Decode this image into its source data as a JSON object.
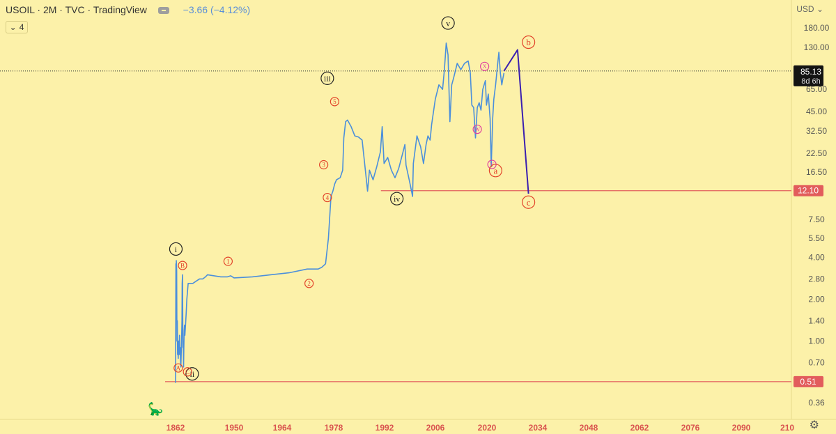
{
  "header": {
    "symbol": "USOIL",
    "interval": "2M",
    "source": "TVC",
    "provider": "TradingView",
    "change": "−3.66 (−4.12%)",
    "collapse_count": "4"
  },
  "currency": "USD",
  "chart_data": {
    "type": "line",
    "title": "USOIL · 2M · TVC · TradingView",
    "y_scale": "log",
    "ylim": [
      0.29,
      250
    ],
    "xlim": [
      1862,
      2104
    ],
    "y_ticks": [
      "180.00",
      "130.00",
      "65.00",
      "45.00",
      "32.50",
      "22.50",
      "16.50",
      "7.50",
      "5.50",
      "4.00",
      "2.80",
      "2.00",
      "1.40",
      "1.00",
      "0.70",
      "0.36"
    ],
    "x_ticks": [
      "1862",
      "1950",
      "1964",
      "1978",
      "1992",
      "2006",
      "2020",
      "2034",
      "2048",
      "2062",
      "2076",
      "2090",
      "210"
    ],
    "price_label": {
      "value": "85.13",
      "sub": "8d 6h"
    },
    "levels": [
      {
        "label": "12.10",
        "value": 12.1,
        "x_from": 1993,
        "color": "#e25c5c"
      },
      {
        "label": "0.51",
        "value": 0.51,
        "x_from": 1862,
        "color": "#e25c5c"
      }
    ],
    "series": [
      {
        "name": "USOIL",
        "color": "#4b8fdb",
        "points": [
          [
            1862,
            0.5
          ],
          [
            1862.5,
            3.6
          ],
          [
            1862.8,
            2.6
          ],
          [
            1863.2,
            3.8
          ],
          [
            1863.7,
            3.2
          ],
          [
            1864.1,
            1.0
          ],
          [
            1864.6,
            1.4
          ],
          [
            1865,
            0.8
          ],
          [
            1865.5,
            0.9
          ],
          [
            1866,
            0.75
          ],
          [
            1866.5,
            1.0
          ],
          [
            1867,
            0.8
          ],
          [
            1867.5,
            0.9
          ],
          [
            1868,
            1.1
          ],
          [
            1868.5,
            0.8
          ],
          [
            1869,
            0.9
          ],
          [
            1869.5,
            0.7
          ],
          [
            1870,
            0.65
          ],
          [
            1870.5,
            0.8
          ],
          [
            1871,
            1.0
          ],
          [
            1871.6,
            1.4
          ],
          [
            1872,
            2.6
          ],
          [
            1872.5,
            3.0
          ],
          [
            1873,
            0.9
          ],
          [
            1873.5,
            1.0
          ],
          [
            1874,
            0.65
          ],
          [
            1874.5,
            0.9
          ],
          [
            1875,
            1.2
          ],
          [
            1875.5,
            1.3
          ],
          [
            1876,
            1.1
          ],
          [
            1877,
            1.3
          ],
          [
            1878,
            1.6
          ],
          [
            1879,
            2.0
          ],
          [
            1880,
            2.3
          ],
          [
            1881,
            2.6
          ],
          [
            1883,
            2.6
          ],
          [
            1888,
            2.6
          ],
          [
            1893,
            2.7
          ],
          [
            1898,
            2.8
          ],
          [
            1903,
            2.8
          ],
          [
            1907,
            2.9
          ],
          [
            1910,
            3.0
          ],
          [
            1920,
            2.95
          ],
          [
            1930,
            2.9
          ],
          [
            1940,
            2.9
          ],
          [
            1945,
            2.95
          ],
          [
            1950,
            2.85
          ],
          [
            1955,
            2.9
          ],
          [
            1960,
            3.0
          ],
          [
            1965,
            3.1
          ],
          [
            1970,
            3.3
          ],
          [
            1973,
            3.3
          ],
          [
            1974,
            3.4
          ],
          [
            1975,
            3.6
          ],
          [
            1975.8,
            5.5
          ],
          [
            1976.5,
            11.0
          ],
          [
            1977,
            12.0
          ],
          [
            1977.5,
            13.5
          ],
          [
            1978,
            14.5
          ],
          [
            1979,
            15.0
          ],
          [
            1979.7,
            17.0
          ],
          [
            1980,
            29.0
          ],
          [
            1980.5,
            38.0
          ],
          [
            1981,
            39.0
          ],
          [
            1982,
            35.0
          ],
          [
            1983,
            30.0
          ],
          [
            1984,
            29.5
          ],
          [
            1985,
            28.0
          ],
          [
            1986,
            16.0
          ],
          [
            1986.5,
            12.0
          ],
          [
            1987,
            17.0
          ],
          [
            1988,
            14.5
          ],
          [
            1989,
            18.0
          ],
          [
            1990,
            23.0
          ],
          [
            1990.5,
            35.0
          ],
          [
            1991,
            19.0
          ],
          [
            1992,
            21.0
          ],
          [
            1993,
            17.0
          ],
          [
            1994,
            15.0
          ],
          [
            1995,
            17.5
          ],
          [
            1996,
            22.0
          ],
          [
            1996.7,
            26.0
          ],
          [
            1997,
            18.5
          ],
          [
            1998,
            14.0
          ],
          [
            1998.8,
            11.0
          ],
          [
            1999,
            19.0
          ],
          [
            2000,
            30.0
          ],
          [
            2001,
            25.0
          ],
          [
            2001.8,
            19.0
          ],
          [
            2002.5,
            26.0
          ],
          [
            2003,
            30.0
          ],
          [
            2003.6,
            28.0
          ],
          [
            2004,
            36.0
          ],
          [
            2005,
            55.0
          ],
          [
            2006,
            70.0
          ],
          [
            2007,
            65.0
          ],
          [
            2007.5,
            90.0
          ],
          [
            2008,
            140.0
          ],
          [
            2008.5,
            115.0
          ],
          [
            2009,
            38.0
          ],
          [
            2009.5,
            70.0
          ],
          [
            2010,
            78.0
          ],
          [
            2011,
            100.0
          ],
          [
            2012,
            90.0
          ],
          [
            2013,
            100.0
          ],
          [
            2014,
            104.0
          ],
          [
            2014.6,
            85.0
          ],
          [
            2015,
            50.0
          ],
          [
            2015.5,
            48.0
          ],
          [
            2016,
            29.0
          ],
          [
            2016.5,
            48.0
          ],
          [
            2017,
            52.0
          ],
          [
            2017.5,
            46.0
          ],
          [
            2018,
            65.0
          ],
          [
            2018.7,
            75.0
          ],
          [
            2019,
            50.0
          ],
          [
            2019.5,
            60.0
          ],
          [
            2020,
            40.0
          ],
          [
            2020.3,
            18.0
          ],
          [
            2020.7,
            40.0
          ],
          [
            2021,
            55.0
          ],
          [
            2021.5,
            70.0
          ],
          [
            2022,
            95.0
          ],
          [
            2022.4,
            120.0
          ],
          [
            2022.8,
            85.0
          ],
          [
            2023.2,
            70.0
          ],
          [
            2023.5,
            78.0
          ],
          [
            2023.8,
            85.13
          ]
        ]
      },
      {
        "name": "Projection",
        "color": "#3a1fb0",
        "points": [
          [
            2023.8,
            88.0
          ],
          [
            2027.5,
            125.0
          ],
          [
            2030.5,
            11.5
          ]
        ]
      }
    ],
    "annotations": [
      {
        "text": "i",
        "x": 1862.5,
        "y": 4.6,
        "style": "roman"
      },
      {
        "text": "ii",
        "x": 1887,
        "y": 0.58,
        "style": "roman"
      },
      {
        "text": "iii",
        "x": 1975.5,
        "y": 78.0,
        "style": "roman"
      },
      {
        "text": "iv",
        "x": 1994.5,
        "y": 10.6,
        "style": "roman"
      },
      {
        "text": "v",
        "x": 2008.5,
        "y": 195.0,
        "style": "roman"
      },
      {
        "text": "A",
        "x": 1866,
        "y": 0.64,
        "style": "orange"
      },
      {
        "text": "B",
        "x": 1872.5,
        "y": 3.5,
        "style": "orange"
      },
      {
        "text": "C",
        "x": 1880,
        "y": 0.6,
        "style": "orange"
      },
      {
        "text": "1",
        "x": 1941,
        "y": 3.75,
        "style": "orange"
      },
      {
        "text": "2",
        "x": 1970.5,
        "y": 2.6,
        "style": "orange"
      },
      {
        "text": "3",
        "x": 1974.5,
        "y": 18.6,
        "style": "orange"
      },
      {
        "text": "4",
        "x": 1975.5,
        "y": 10.8,
        "style": "orange"
      },
      {
        "text": "5",
        "x": 1977.5,
        "y": 53.0,
        "style": "orange"
      },
      {
        "text": "W",
        "x": 2016.5,
        "y": 33.5,
        "style": "pink"
      },
      {
        "text": "X",
        "x": 2018.5,
        "y": 95.0,
        "style": "pink"
      },
      {
        "text": "Y",
        "x": 2020.5,
        "y": 18.7,
        "style": "pink"
      },
      {
        "text": "a",
        "x": 2021.5,
        "y": 16.9,
        "style": "orange-lg"
      },
      {
        "text": "b",
        "x": 2030.5,
        "y": 142.0,
        "style": "orange-lg"
      },
      {
        "text": "c",
        "x": 2030.5,
        "y": 10.0,
        "style": "orange-lg"
      }
    ]
  }
}
